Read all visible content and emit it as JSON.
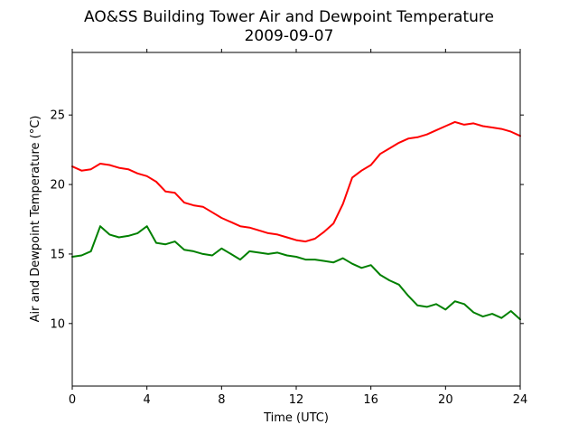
{
  "chart_data": {
    "type": "line",
    "title": "AO&SS Building Tower Air and Dewpoint Temperature",
    "subtitle": "2009-09-07",
    "xlabel": "Time (UTC)",
    "ylabel": "Air and Dewpoint Temperature (°C)",
    "xlim": [
      0,
      24
    ],
    "ylim": [
      5.5,
      29.5
    ],
    "xticks": [
      0,
      4,
      8,
      12,
      16,
      20,
      24
    ],
    "yticks": [
      10,
      15,
      20,
      25
    ],
    "grid": false,
    "legend": "none",
    "x": [
      0,
      0.5,
      1,
      1.5,
      2,
      2.5,
      3,
      3.5,
      4,
      4.5,
      5,
      5.5,
      6,
      6.5,
      7,
      7.5,
      8,
      8.5,
      9,
      9.5,
      10,
      10.5,
      11,
      11.5,
      12,
      12.5,
      13,
      13.5,
      14,
      14.5,
      15,
      15.5,
      16,
      16.5,
      17,
      17.5,
      18,
      18.5,
      19,
      19.5,
      20,
      20.5,
      21,
      21.5,
      22,
      22.5,
      23,
      23.5,
      24
    ],
    "series": [
      {
        "color": "#ff0000",
        "values": [
          21.3,
          21.0,
          21.1,
          21.5,
          21.4,
          21.2,
          21.1,
          20.8,
          20.6,
          20.2,
          19.5,
          19.4,
          18.7,
          18.5,
          18.4,
          18.0,
          17.6,
          17.3,
          17.0,
          16.9,
          16.7,
          16.5,
          16.4,
          16.2,
          16.0,
          15.9,
          16.1,
          16.6,
          17.2,
          18.6,
          20.5,
          21.0,
          21.4,
          22.2,
          22.6,
          23.0,
          23.3,
          23.4,
          23.6,
          23.9,
          24.2,
          24.5,
          24.3,
          24.4,
          24.2,
          24.1,
          24.0,
          23.8,
          23.5
        ]
      },
      {
        "color": "#008000",
        "values": [
          14.8,
          14.9,
          15.2,
          17.0,
          16.4,
          16.2,
          16.3,
          16.5,
          17.0,
          15.8,
          15.7,
          15.9,
          15.3,
          15.2,
          15.0,
          14.9,
          15.4,
          15.0,
          14.6,
          15.2,
          15.1,
          15.0,
          15.1,
          14.9,
          14.8,
          14.6,
          14.6,
          14.5,
          14.4,
          14.7,
          14.3,
          14.0,
          14.2,
          13.5,
          13.1,
          12.8,
          12.0,
          11.3,
          11.2,
          11.4,
          11.0,
          11.6,
          11.4,
          10.8,
          10.5,
          10.7,
          10.4,
          10.9,
          10.3
        ]
      }
    ]
  }
}
